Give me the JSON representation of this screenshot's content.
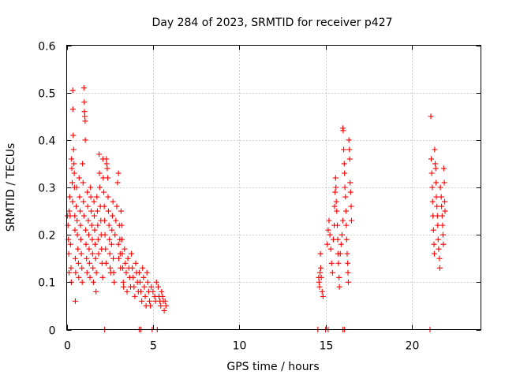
{
  "chart_data": {
    "type": "scatter",
    "title": "Day 284 of 2023, SRMTID for receiver p427",
    "xlabel": "GPS time / hours",
    "ylabel": "SRMTID / TECUs",
    "xlim": [
      0,
      24
    ],
    "ylim": [
      0,
      0.6
    ],
    "xticks": [
      0,
      5,
      10,
      15,
      20
    ],
    "xtick_labels": [
      "0",
      "5",
      "10",
      "15",
      "20"
    ],
    "yticks": [
      0,
      0.1,
      0.2,
      0.3,
      0.4,
      0.5,
      0.6
    ],
    "ytick_labels": [
      "0",
      "0.1",
      "0.2",
      "0.3",
      "0.4",
      "0.5",
      "0.6"
    ],
    "grid": true,
    "marker": "+",
    "color": "#ff0000",
    "series": [
      {
        "name": "SRMTID",
        "points": [
          [
            0.05,
            0.24
          ],
          [
            0.08,
            0.22
          ],
          [
            0.1,
            0.19
          ],
          [
            0.12,
            0.16
          ],
          [
            0.14,
            0.12
          ],
          [
            0.15,
            0.25
          ],
          [
            0.18,
            0.28
          ],
          [
            0.2,
            0.24
          ],
          [
            0.22,
            0.18
          ],
          [
            0.25,
            0.13
          ],
          [
            0.27,
            0.1
          ],
          [
            0.28,
            0.36
          ],
          [
            0.3,
            0.34
          ],
          [
            0.32,
            0.31
          ],
          [
            0.34,
            0.27
          ],
          [
            0.35,
            0.505
          ],
          [
            0.36,
            0.465
          ],
          [
            0.38,
            0.41
          ],
          [
            0.4,
            0.38
          ],
          [
            0.42,
            0.35
          ],
          [
            0.44,
            0.33
          ],
          [
            0.45,
            0.3
          ],
          [
            0.47,
            0.24
          ],
          [
            0.48,
            0.21
          ],
          [
            0.5,
            0.15
          ],
          [
            0.5,
            0.06
          ],
          [
            0.52,
            0.12
          ],
          [
            0.55,
            0.26
          ],
          [
            0.58,
            0.3
          ],
          [
            0.6,
            0.23
          ],
          [
            0.62,
            0.2
          ],
          [
            0.65,
            0.17
          ],
          [
            0.68,
            0.14
          ],
          [
            0.7,
            0.11
          ],
          [
            0.72,
            0.32
          ],
          [
            0.75,
            0.28
          ],
          [
            0.78,
            0.25
          ],
          [
            0.8,
            0.22
          ],
          [
            0.82,
            0.19
          ],
          [
            0.85,
            0.16
          ],
          [
            0.88,
            0.13
          ],
          [
            0.9,
            0.1
          ],
          [
            0.92,
            0.35
          ],
          [
            0.95,
            0.31
          ],
          [
            0.97,
            0.27
          ],
          [
            1.0,
            0.24
          ],
          [
            1.0,
            0.51
          ],
          [
            1.02,
            0.48
          ],
          [
            1.03,
            0.46
          ],
          [
            1.05,
            0.45
          ],
          [
            1.07,
            0.44
          ],
          [
            1.08,
            0.4
          ],
          [
            1.1,
            0.21
          ],
          [
            1.12,
            0.18
          ],
          [
            1.15,
            0.15
          ],
          [
            1.18,
            0.12
          ],
          [
            1.2,
            0.29
          ],
          [
            1.22,
            0.26
          ],
          [
            1.25,
            0.23
          ],
          [
            1.28,
            0.2
          ],
          [
            1.3,
            0.17
          ],
          [
            1.32,
            0.14
          ],
          [
            1.35,
            0.11
          ],
          [
            1.38,
            0.3
          ],
          [
            1.4,
            0.28
          ],
          [
            1.42,
            0.25
          ],
          [
            1.45,
            0.22
          ],
          [
            1.48,
            0.19
          ],
          [
            1.5,
            0.16
          ],
          [
            1.52,
            0.13
          ],
          [
            1.55,
            0.1
          ],
          [
            1.58,
            0.27
          ],
          [
            1.6,
            0.24
          ],
          [
            1.62,
            0.21
          ],
          [
            1.65,
            0.18
          ],
          [
            1.68,
            0.15
          ],
          [
            1.7,
            0.08
          ],
          [
            1.72,
            0.12
          ],
          [
            1.75,
            0.28
          ],
          [
            1.78,
            0.25
          ],
          [
            1.8,
            0.22
          ],
          [
            1.82,
            0.19
          ],
          [
            1.85,
            0.16
          ],
          [
            1.88,
            0.37
          ],
          [
            1.9,
            0.33
          ],
          [
            1.92,
            0.3
          ],
          [
            1.95,
            0.26
          ],
          [
            1.98,
            0.23
          ],
          [
            2.0,
            0.2
          ],
          [
            2.02,
            0.17
          ],
          [
            2.05,
            0.14
          ],
          [
            2.08,
            0.11
          ],
          [
            2.1,
            0.36
          ],
          [
            2.12,
            0.32
          ],
          [
            2.15,
            0.29
          ],
          [
            2.18,
            0.26
          ],
          [
            2.2,
            0.23
          ],
          [
            2.22,
            0.2
          ],
          [
            2.25,
            0.17
          ],
          [
            2.28,
            0.14
          ],
          [
            2.3,
            0.36
          ],
          [
            2.32,
            0.35
          ],
          [
            2.35,
            0.34
          ],
          [
            2.38,
            0.32
          ],
          [
            2.4,
            0.28
          ],
          [
            2.42,
            0.25
          ],
          [
            2.45,
            0.22
          ],
          [
            2.48,
            0.19
          ],
          [
            2.5,
            0.16
          ],
          [
            2.52,
            0.13
          ],
          [
            2.55,
            0.12
          ],
          [
            2.6,
            0.18
          ],
          [
            2.62,
            0.21
          ],
          [
            2.65,
            0.24
          ],
          [
            2.68,
            0.27
          ],
          [
            2.7,
            0.15
          ],
          [
            2.72,
            0.12
          ],
          [
            2.75,
            0.1
          ],
          [
            2.8,
            0.2
          ],
          [
            2.85,
            0.23
          ],
          [
            2.9,
            0.26
          ],
          [
            2.95,
            0.31
          ],
          [
            3.0,
            0.33
          ],
          [
            3.0,
            0.18
          ],
          [
            3.02,
            0.15
          ],
          [
            3.05,
            0.22
          ],
          [
            3.08,
            0.19
          ],
          [
            3.1,
            0.16
          ],
          [
            3.12,
            0.13
          ],
          [
            3.15,
            0.25
          ],
          [
            3.18,
            0.22
          ],
          [
            3.2,
            0.19
          ],
          [
            3.22,
            0.16
          ],
          [
            3.25,
            0.13
          ],
          [
            3.28,
            0.1
          ],
          [
            3.3,
            0.09
          ],
          [
            3.35,
            0.17
          ],
          [
            3.4,
            0.14
          ],
          [
            3.45,
            0.12
          ],
          [
            3.5,
            0.08
          ],
          [
            3.55,
            0.15
          ],
          [
            3.6,
            0.13
          ],
          [
            3.65,
            0.11
          ],
          [
            3.7,
            0.09
          ],
          [
            3.75,
            0.16
          ],
          [
            3.8,
            0.13
          ],
          [
            3.85,
            0.11
          ],
          [
            3.9,
            0.09
          ],
          [
            3.95,
            0.07
          ],
          [
            4.0,
            0.14
          ],
          [
            4.05,
            0.12
          ],
          [
            4.1,
            0.1
          ],
          [
            4.15,
            0.08
          ],
          [
            4.2,
            0.12
          ],
          [
            4.25,
            0.1
          ],
          [
            4.3,
            0.08
          ],
          [
            4.35,
            0.06
          ],
          [
            4.4,
            0.13
          ],
          [
            4.45,
            0.11
          ],
          [
            4.5,
            0.09
          ],
          [
            4.55,
            0.07
          ],
          [
            4.6,
            0.05
          ],
          [
            4.65,
            0.12
          ],
          [
            4.7,
            0.1
          ],
          [
            4.75,
            0.08
          ],
          [
            4.8,
            0.06
          ],
          [
            4.85,
            0.05
          ],
          [
            4.9,
            0.09
          ],
          [
            5.0,
            0.08
          ],
          [
            5.1,
            0.07
          ],
          [
            5.15,
            0.06
          ],
          [
            5.2,
            0.1
          ],
          [
            5.3,
            0.09
          ],
          [
            5.35,
            0.07
          ],
          [
            5.4,
            0.06
          ],
          [
            5.45,
            0.05
          ],
          [
            5.5,
            0.08
          ],
          [
            5.55,
            0.07
          ],
          [
            5.6,
            0.06
          ],
          [
            5.65,
            0.04
          ],
          [
            5.7,
            0.06
          ],
          [
            5.75,
            0.05
          ],
          [
            14.6,
            0.11
          ],
          [
            14.62,
            0.1
          ],
          [
            14.65,
            0.09
          ],
          [
            14.68,
            0.12
          ],
          [
            14.7,
            0.16
          ],
          [
            14.72,
            0.13
          ],
          [
            14.75,
            0.11
          ],
          [
            14.8,
            0.08
          ],
          [
            14.85,
            0.07
          ],
          [
            15.1,
            0.18
          ],
          [
            15.15,
            0.21
          ],
          [
            15.2,
            0.23
          ],
          [
            15.25,
            0.2
          ],
          [
            15.3,
            0.17
          ],
          [
            15.35,
            0.14
          ],
          [
            15.4,
            0.12
          ],
          [
            15.45,
            0.19
          ],
          [
            15.5,
            0.22
          ],
          [
            15.52,
            0.26
          ],
          [
            15.55,
            0.29
          ],
          [
            15.58,
            0.32
          ],
          [
            15.6,
            0.3
          ],
          [
            15.62,
            0.27
          ],
          [
            15.65,
            0.25
          ],
          [
            15.68,
            0.22
          ],
          [
            15.7,
            0.19
          ],
          [
            15.72,
            0.16
          ],
          [
            15.75,
            0.14
          ],
          [
            15.78,
            0.11
          ],
          [
            15.8,
            0.09
          ],
          [
            15.85,
            0.16
          ],
          [
            15.9,
            0.18
          ],
          [
            15.95,
            0.2
          ],
          [
            16.0,
            0.23
          ],
          [
            16.0,
            0.425
          ],
          [
            16.02,
            0.42
          ],
          [
            16.05,
            0.38
          ],
          [
            16.08,
            0.35
          ],
          [
            16.1,
            0.33
          ],
          [
            16.12,
            0.3
          ],
          [
            16.15,
            0.28
          ],
          [
            16.18,
            0.25
          ],
          [
            16.2,
            0.22
          ],
          [
            16.22,
            0.19
          ],
          [
            16.25,
            0.16
          ],
          [
            16.28,
            0.14
          ],
          [
            16.3,
            0.12
          ],
          [
            16.32,
            0.1
          ],
          [
            16.35,
            0.4
          ],
          [
            16.38,
            0.38
          ],
          [
            16.4,
            0.36
          ],
          [
            16.42,
            0.31
          ],
          [
            16.45,
            0.29
          ],
          [
            16.48,
            0.26
          ],
          [
            16.5,
            0.23
          ],
          [
            21.1,
            0.45
          ],
          [
            21.12,
            0.36
          ],
          [
            21.15,
            0.33
          ],
          [
            21.18,
            0.3
          ],
          [
            21.2,
            0.27
          ],
          [
            21.22,
            0.24
          ],
          [
            21.25,
            0.21
          ],
          [
            21.28,
            0.18
          ],
          [
            21.3,
            0.16
          ],
          [
            21.32,
            0.38
          ],
          [
            21.35,
            0.35
          ],
          [
            21.38,
            0.34
          ],
          [
            21.4,
            0.31
          ],
          [
            21.42,
            0.28
          ],
          [
            21.45,
            0.26
          ],
          [
            21.48,
            0.24
          ],
          [
            21.5,
            0.22
          ],
          [
            21.52,
            0.19
          ],
          [
            21.55,
            0.17
          ],
          [
            21.6,
            0.15
          ],
          [
            21.62,
            0.13
          ],
          [
            21.65,
            0.3
          ],
          [
            21.7,
            0.28
          ],
          [
            21.72,
            0.26
          ],
          [
            21.75,
            0.24
          ],
          [
            21.78,
            0.22
          ],
          [
            21.8,
            0.2
          ],
          [
            21.82,
            0.18
          ],
          [
            21.85,
            0.34
          ],
          [
            21.88,
            0.31
          ],
          [
            21.9,
            0.27
          ],
          [
            21.92,
            0.25
          ]
        ]
      }
    ],
    "baseline_points_x": [
      2.2,
      4.2,
      4.3,
      4.95,
      5.25,
      14.55,
      15.0,
      15.15,
      16.0,
      16.1,
      21.05
    ]
  }
}
